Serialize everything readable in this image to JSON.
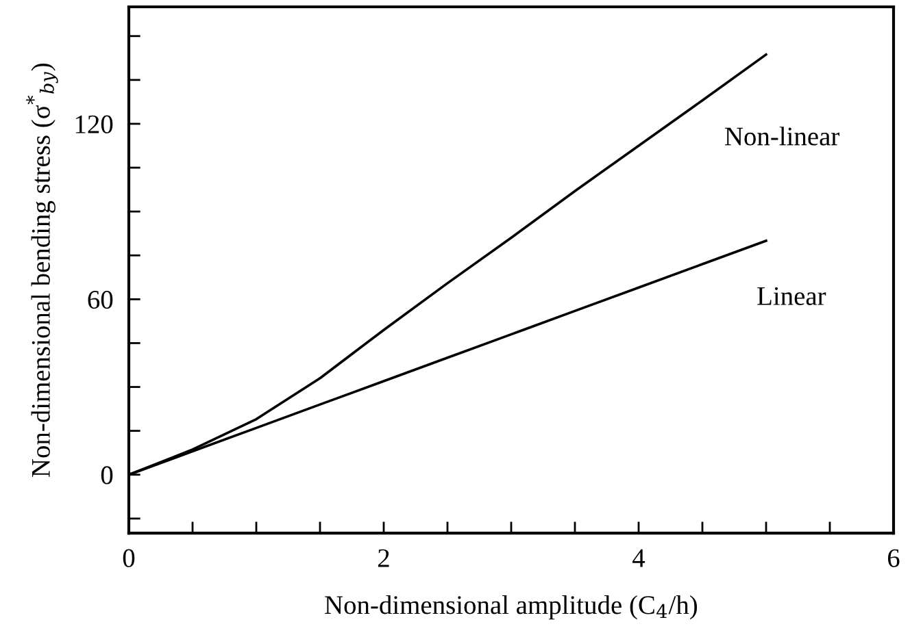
{
  "chart_data": {
    "type": "line",
    "xlabel": "Non-dimensional amplitude (C$_{4}$/h)",
    "ylabel": "Non-dimensional bending stress (σ$^{*}$$_{by}$)",
    "xlim": [
      0,
      6
    ],
    "ylim": [
      -20,
      160
    ],
    "xticks": [
      0,
      {
        "value": 0.5,
        "label": null
      },
      {
        "value": 1,
        "label": null
      },
      {
        "value": 1.5,
        "label": null
      },
      2,
      {
        "value": 2.5,
        "label": null
      },
      {
        "value": 3,
        "label": null
      },
      {
        "value": 3.5,
        "label": null
      },
      4,
      {
        "value": 4.5,
        "label": null
      },
      {
        "value": 5,
        "label": null
      },
      {
        "value": 5.5,
        "label": null
      },
      6
    ],
    "yticks": [
      {
        "value": -15,
        "label": null
      },
      0,
      {
        "value": 15,
        "label": null
      },
      {
        "value": 30,
        "label": null
      },
      {
        "value": 45,
        "label": null
      },
      60,
      {
        "value": 75,
        "label": null
      },
      {
        "value": 90,
        "label": null
      },
      {
        "value": 105,
        "label": null
      },
      120,
      {
        "value": 135,
        "label": null
      },
      {
        "value": 150,
        "label": null
      }
    ],
    "x": [
      0,
      0.5,
      1,
      1.5,
      2,
      2.5,
      3,
      3.5,
      4,
      4.5,
      5
    ],
    "series": [
      {
        "name": "Non-linear",
        "color": "#000000",
        "values": [
          0,
          8.6,
          19,
          33,
          49.5,
          65.5,
          81,
          97,
          112.5,
          128,
          143.7
        ]
      },
      {
        "name": "Linear",
        "color": "#000000",
        "values": [
          0,
          8,
          16,
          24,
          32,
          40,
          48,
          56,
          64,
          72,
          80
        ]
      }
    ],
    "grid": false,
    "legend": false,
    "marker": "none",
    "line_style": "solid"
  }
}
